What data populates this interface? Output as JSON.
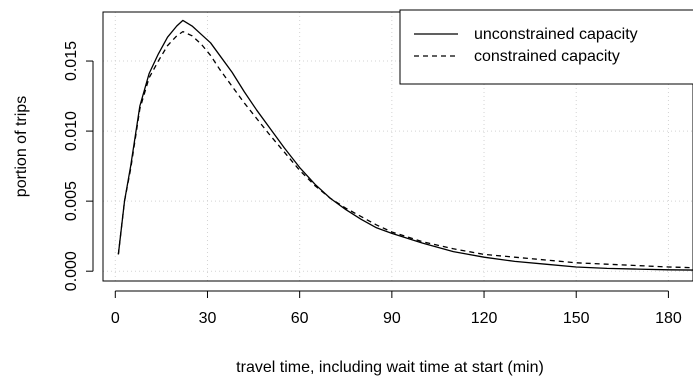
{
  "chart_data": {
    "type": "line",
    "title": "",
    "xlabel": "travel time, including wait time at start (min)",
    "ylabel": "portion of trips",
    "xlim": [
      -4,
      188
    ],
    "ylim": [
      -0.0007,
      0.0185
    ],
    "xticks": [
      0,
      30,
      60,
      90,
      120,
      150,
      180
    ],
    "xtick_labels": [
      "0",
      "30",
      "60",
      "90",
      "120",
      "150",
      "180"
    ],
    "yticks": [
      0.0,
      0.005,
      0.01,
      0.015
    ],
    "ytick_labels": [
      "0.000",
      "0.005",
      "0.010",
      "0.015"
    ],
    "grid": true,
    "legend": {
      "position": "top-right"
    },
    "series": [
      {
        "name": "unconstrained capacity",
        "line_style": "solid",
        "x": [
          1,
          3,
          5,
          8,
          11,
          14,
          17,
          20,
          22,
          25,
          28,
          31,
          34,
          38,
          42,
          46,
          50,
          55,
          60,
          65,
          70,
          75,
          80,
          85,
          90,
          100,
          110,
          120,
          130,
          140,
          150,
          160,
          170,
          180,
          188
        ],
        "y": [
          0.0012,
          0.005,
          0.0075,
          0.0118,
          0.0141,
          0.0155,
          0.0167,
          0.0175,
          0.0179,
          0.0175,
          0.0169,
          0.0163,
          0.0154,
          0.0142,
          0.0128,
          0.0115,
          0.0103,
          0.0088,
          0.0074,
          0.0062,
          0.0052,
          0.0044,
          0.0037,
          0.0031,
          0.0027,
          0.002,
          0.0014,
          0.001,
          0.0007,
          0.0005,
          0.0003,
          0.0002,
          0.00015,
          0.0001,
          8e-05
        ]
      },
      {
        "name": "constrained capacity",
        "line_style": "dashed",
        "x": [
          1,
          3,
          5,
          8,
          11,
          14,
          17,
          20,
          22,
          25,
          28,
          31,
          34,
          38,
          42,
          46,
          50,
          55,
          60,
          65,
          70,
          75,
          80,
          85,
          90,
          100,
          110,
          120,
          130,
          140,
          150,
          160,
          170,
          180,
          188
        ],
        "y": [
          0.0012,
          0.005,
          0.0073,
          0.0116,
          0.0138,
          0.015,
          0.0161,
          0.0168,
          0.0171,
          0.0168,
          0.0162,
          0.0154,
          0.0144,
          0.0132,
          0.012,
          0.0109,
          0.0098,
          0.0085,
          0.0072,
          0.0061,
          0.0052,
          0.0045,
          0.0039,
          0.0033,
          0.0028,
          0.0021,
          0.0016,
          0.0012,
          0.001,
          0.0008,
          0.0006,
          0.0005,
          0.0004,
          0.0003,
          0.00025
        ]
      }
    ]
  }
}
